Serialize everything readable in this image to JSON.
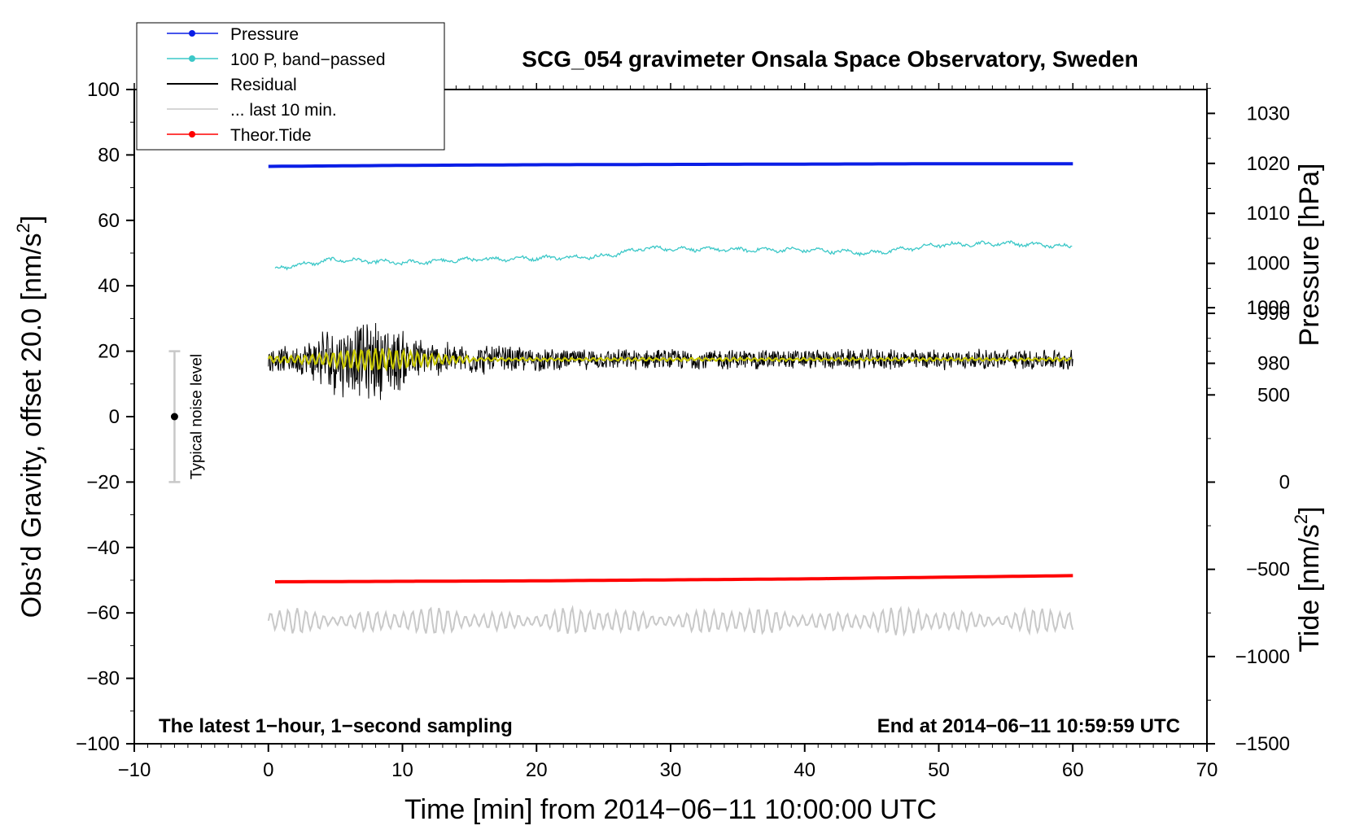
{
  "colors": {
    "pressure": "#0a1ee6",
    "bandpassed": "#3cc8c8",
    "residual": "#000000",
    "last10": "#c8c8c8",
    "residual_smooth": "#c8c800",
    "tide": "#ff0000",
    "noise_bar": "#c8c8c8"
  },
  "chart_data": {
    "type": "line",
    "title": "SCG_054 gravimeter Onsala Space Observatory, Sweden",
    "xlabel": "Time [min] from 2014−06−11 10:00:00 UTC",
    "ylabel": "Obs’d Gravity, offset 20.0 [nm/s²]",
    "ylabel_text": "Obs’d Gravity, offset 20.0 [nm/s",
    "ylabel_sup": "2",
    "ylabel_close": "]",
    "right_label_pressure": "Pressure [hPa]",
    "right_label_tide_text": "Tide [nm/s",
    "right_label_tide_sup": "2",
    "right_label_tide_close": "]",
    "xlim": [
      -10,
      70
    ],
    "ylim": [
      -100,
      100
    ],
    "x_ticks": [
      -10,
      0,
      10,
      20,
      30,
      40,
      50,
      60,
      70
    ],
    "x_tick_labels": [
      "−10",
      "0",
      "10",
      "20",
      "30",
      "40",
      "50",
      "60",
      "70"
    ],
    "y_ticks": [
      -100,
      -80,
      -60,
      -40,
      -20,
      0,
      20,
      40,
      60,
      80,
      100
    ],
    "y_tick_labels": [
      "−100",
      "−80",
      "−60",
      "−40",
      "−20",
      "0",
      "20",
      "40",
      "60",
      "80",
      "100"
    ],
    "pressure_axis": {
      "ticks": [
        980,
        990,
        1000,
        1010,
        1020,
        1030
      ],
      "tick_labels": [
        "980",
        "990",
        "1000",
        "1010",
        "1020",
        "1030"
      ],
      "map_ref": [
        [
          980,
          16.3
        ],
        [
          1030,
          92.7
        ]
      ]
    },
    "tide_axis": {
      "ticks": [
        -1500,
        -1000,
        -500,
        0,
        500,
        1000
      ],
      "tick_labels": [
        "−1500",
        "−1000",
        "−500",
        "0",
        "500",
        "1000"
      ],
      "map_ref": [
        [
          -1500,
          -100
        ],
        [
          1000,
          33.3
        ]
      ]
    },
    "legend": [
      {
        "label": "Pressure",
        "style": "line-dot",
        "color": "#0a1ee6"
      },
      {
        "label": "100 P, band−passed",
        "style": "line-dot",
        "color": "#3cc8c8"
      },
      {
        "label": "Residual",
        "style": "line",
        "color": "#000000"
      },
      {
        "label": "... last 10 min.",
        "style": "line",
        "color": "#c8c8c8"
      },
      {
        "label": "Theor.Tide",
        "style": "line-dot",
        "color": "#ff0000"
      }
    ],
    "series": [
      {
        "name": "Pressure",
        "x": [
          0,
          10,
          20,
          30,
          40,
          50,
          60
        ],
        "values": [
          76.5,
          76.8,
          77.0,
          77.1,
          77.2,
          77.3,
          77.3
        ]
      },
      {
        "name": "100 P, band−passed",
        "x": [
          0,
          5,
          10,
          15,
          20,
          25,
          28,
          35,
          40,
          45,
          50,
          55,
          60
        ],
        "values": [
          45,
          48,
          47,
          48,
          48.5,
          49,
          51.5,
          51,
          51,
          50,
          52.5,
          53,
          52
        ]
      },
      {
        "name": "Residual",
        "x_range": [
          0,
          60
        ],
        "values_mean": 17.5,
        "noise_amplitude": "up to ±20 near 10 min, ±3 after 20 min"
      },
      {
        "name": "... last 10 min.",
        "x_range": [
          0,
          60
        ],
        "values_mean": -62.5,
        "noise_amplitude": 3
      },
      {
        "name": "Theor.Tide",
        "x": [
          0,
          20,
          40,
          60
        ],
        "values": [
          -50.5,
          -50.2,
          -49.6,
          -48.6
        ]
      }
    ],
    "noise_bar": {
      "x": -7,
      "y": 0,
      "low": -20,
      "high": 20,
      "label": "Typical noise level"
    },
    "annotations": {
      "left": "The latest 1−hour, 1−second sampling",
      "right": "End at 2014−06−11 10:59:59 UTC"
    }
  }
}
